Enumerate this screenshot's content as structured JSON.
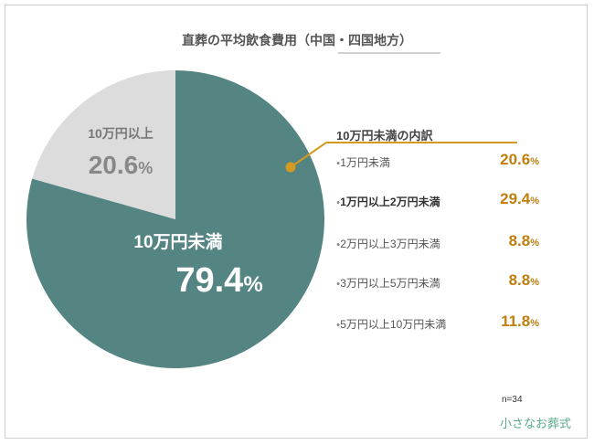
{
  "chart_data": {
    "type": "pie",
    "title": "直葬の平均飲食費用（中国・四国地方）",
    "slices": [
      {
        "label": "10万円未満",
        "value": 79.4,
        "display": "79.4",
        "unit": "%",
        "color": "#548583"
      },
      {
        "label": "10万円以上",
        "value": 20.6,
        "display": "20.6",
        "unit": "%",
        "color": "#dcdcdc"
      }
    ],
    "breakdown": {
      "title": "10万円未満の内訳",
      "accent_color": "#d49a1f",
      "items": [
        {
          "label": "1万円未満",
          "value": 20.6,
          "display": "20.6",
          "unit": "%",
          "bold": false
        },
        {
          "label": "1万円以上2万円未満",
          "value": 29.4,
          "display": "29.4",
          "unit": "%",
          "bold": true
        },
        {
          "label": "2万円以上3万円未満",
          "value": 8.8,
          "display": "8.8",
          "unit": "%",
          "bold": false
        },
        {
          "label": "3万円以上5万円未満",
          "value": 8.8,
          "display": "8.8",
          "unit": "%",
          "bold": false
        },
        {
          "label": "5万円以上10万円未満",
          "value": 11.8,
          "display": "11.8",
          "unit": "%",
          "bold": false
        }
      ]
    }
  },
  "footer": {
    "sample_size": "n=34",
    "logo_text": "小さなお葬式"
  }
}
